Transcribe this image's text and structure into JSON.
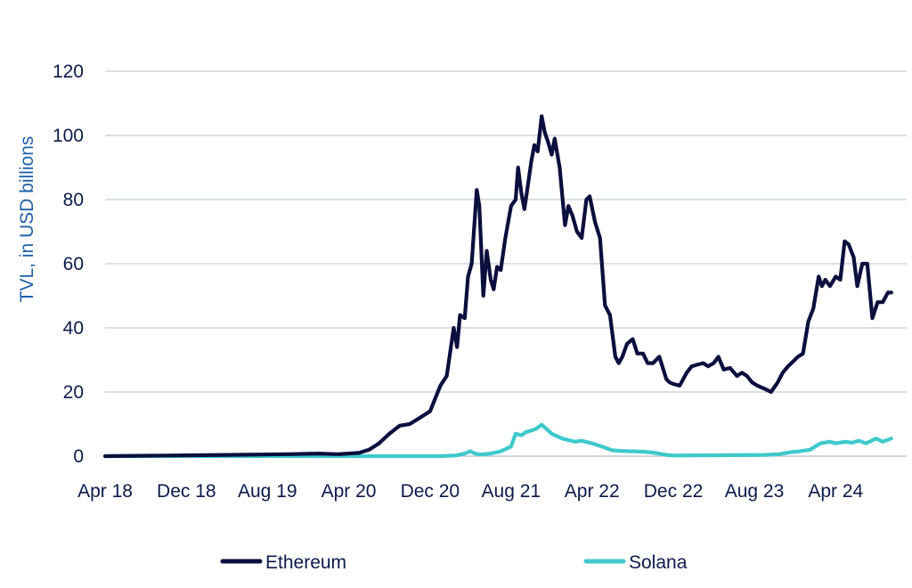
{
  "chart_data": {
    "type": "line",
    "title": "",
    "xlabel": "",
    "ylabel": "TVL, in USD billions",
    "ylim": [
      0,
      120
    ],
    "yticks": [
      0,
      20,
      40,
      60,
      80,
      100,
      120
    ],
    "xlim": [
      "2018-04-01",
      "2024-10-31"
    ],
    "xticks": [
      {
        "date": "2018-04-01",
        "label": "Apr 18"
      },
      {
        "date": "2018-12-01",
        "label": "Dec 18"
      },
      {
        "date": "2019-08-01",
        "label": "Aug 19"
      },
      {
        "date": "2020-04-01",
        "label": "Apr 20"
      },
      {
        "date": "2020-12-01",
        "label": "Dec 20"
      },
      {
        "date": "2021-08-01",
        "label": "Aug 21"
      },
      {
        "date": "2022-04-01",
        "label": "Apr 22"
      },
      {
        "date": "2022-12-01",
        "label": "Dec 22"
      },
      {
        "date": "2023-08-01",
        "label": "Aug 23"
      },
      {
        "date": "2024-04-01",
        "label": "Apr 24"
      }
    ],
    "grid": true,
    "legend_position": "bottom",
    "series": [
      {
        "name": "Ethereum",
        "color": "#0b0f3d",
        "points": [
          [
            "2018-04-01",
            0.0
          ],
          [
            "2018-10-01",
            0.2
          ],
          [
            "2019-04-01",
            0.4
          ],
          [
            "2019-10-01",
            0.6
          ],
          [
            "2020-01-01",
            0.8
          ],
          [
            "2020-03-01",
            0.6
          ],
          [
            "2020-05-01",
            1.0
          ],
          [
            "2020-06-01",
            2.0
          ],
          [
            "2020-07-01",
            4.0
          ],
          [
            "2020-08-01",
            7.0
          ],
          [
            "2020-09-01",
            9.5
          ],
          [
            "2020-10-01",
            10.0
          ],
          [
            "2020-11-01",
            12.0
          ],
          [
            "2020-12-01",
            14.0
          ],
          [
            "2021-01-01",
            22.0
          ],
          [
            "2021-01-20",
            25.0
          ],
          [
            "2021-02-10",
            40.0
          ],
          [
            "2021-02-20",
            34.0
          ],
          [
            "2021-03-01",
            44.0
          ],
          [
            "2021-03-15",
            43.0
          ],
          [
            "2021-03-25",
            56.0
          ],
          [
            "2021-04-05",
            60.0
          ],
          [
            "2021-04-20",
            83.0
          ],
          [
            "2021-04-28",
            78.0
          ],
          [
            "2021-05-10",
            50.0
          ],
          [
            "2021-05-20",
            64.0
          ],
          [
            "2021-06-01",
            55.0
          ],
          [
            "2021-06-10",
            52.0
          ],
          [
            "2021-06-20",
            59.0
          ],
          [
            "2021-07-01",
            58.0
          ],
          [
            "2021-07-15",
            68.0
          ],
          [
            "2021-08-01",
            78.0
          ],
          [
            "2021-08-15",
            80.0
          ],
          [
            "2021-08-22",
            90.0
          ],
          [
            "2021-09-01",
            82.0
          ],
          [
            "2021-09-10",
            77.0
          ],
          [
            "2021-09-20",
            84.0
          ],
          [
            "2021-10-01",
            92.0
          ],
          [
            "2021-10-10",
            97.0
          ],
          [
            "2021-10-20",
            95.0
          ],
          [
            "2021-11-01",
            106.0
          ],
          [
            "2021-11-10",
            101.0
          ],
          [
            "2021-11-20",
            98.0
          ],
          [
            "2021-12-01",
            94.0
          ],
          [
            "2021-12-10",
            99.0
          ],
          [
            "2021-12-25",
            90.0
          ],
          [
            "2022-01-10",
            72.0
          ],
          [
            "2022-01-20",
            78.0
          ],
          [
            "2022-02-01",
            75.0
          ],
          [
            "2022-02-15",
            70.0
          ],
          [
            "2022-03-01",
            68.0
          ],
          [
            "2022-03-15",
            80.0
          ],
          [
            "2022-03-25",
            81.0
          ],
          [
            "2022-04-10",
            73.0
          ],
          [
            "2022-04-25",
            68.0
          ],
          [
            "2022-05-10",
            47.0
          ],
          [
            "2022-05-25",
            44.0
          ],
          [
            "2022-06-10",
            31.0
          ],
          [
            "2022-06-20",
            29.0
          ],
          [
            "2022-07-01",
            31.0
          ],
          [
            "2022-07-15",
            35.0
          ],
          [
            "2022-08-01",
            36.5
          ],
          [
            "2022-08-15",
            32.0
          ],
          [
            "2022-09-01",
            32.0
          ],
          [
            "2022-09-15",
            29.0
          ],
          [
            "2022-10-01",
            29.0
          ],
          [
            "2022-10-20",
            31.0
          ],
          [
            "2022-11-10",
            24.0
          ],
          [
            "2022-11-20",
            23.0
          ],
          [
            "2022-12-01",
            22.5
          ],
          [
            "2022-12-20",
            22.0
          ],
          [
            "2023-01-10",
            26.0
          ],
          [
            "2023-01-25",
            28.0
          ],
          [
            "2023-02-10",
            28.5
          ],
          [
            "2023-03-01",
            29.0
          ],
          [
            "2023-03-15",
            28.0
          ],
          [
            "2023-04-01",
            29.0
          ],
          [
            "2023-04-15",
            31.0
          ],
          [
            "2023-05-01",
            27.0
          ],
          [
            "2023-05-20",
            27.5
          ],
          [
            "2023-06-10",
            25.0
          ],
          [
            "2023-06-25",
            26.0
          ],
          [
            "2023-07-10",
            25.0
          ],
          [
            "2023-07-25",
            23.0
          ],
          [
            "2023-08-10",
            22.0
          ],
          [
            "2023-09-01",
            21.0
          ],
          [
            "2023-09-20",
            20.0
          ],
          [
            "2023-10-10",
            23.0
          ],
          [
            "2023-10-25",
            26.0
          ],
          [
            "2023-11-10",
            28.0
          ],
          [
            "2023-11-25",
            29.5
          ],
          [
            "2023-12-10",
            31.0
          ],
          [
            "2023-12-25",
            32.0
          ],
          [
            "2024-01-10",
            42.0
          ],
          [
            "2024-01-25",
            46.0
          ],
          [
            "2024-02-10",
            56.0
          ],
          [
            "2024-02-20",
            53.0
          ],
          [
            "2024-03-01",
            55.0
          ],
          [
            "2024-03-15",
            53.0
          ],
          [
            "2024-04-01",
            56.0
          ],
          [
            "2024-04-15",
            55.0
          ],
          [
            "2024-04-28",
            67.0
          ],
          [
            "2024-05-10",
            66.0
          ],
          [
            "2024-05-25",
            62.0
          ],
          [
            "2024-06-05",
            53.0
          ],
          [
            "2024-06-20",
            60.0
          ],
          [
            "2024-07-05",
            60.0
          ],
          [
            "2024-07-20",
            43.0
          ],
          [
            "2024-08-05",
            48.0
          ],
          [
            "2024-08-20",
            48.0
          ],
          [
            "2024-09-05",
            51.0
          ],
          [
            "2024-09-15",
            51.0
          ]
        ]
      },
      {
        "name": "Solana",
        "color": "#3ec9cc",
        "points": [
          [
            "2018-04-01",
            0.0
          ],
          [
            "2021-01-01",
            0.0
          ],
          [
            "2021-02-15",
            0.2
          ],
          [
            "2021-03-15",
            0.8
          ],
          [
            "2021-04-01",
            1.5
          ],
          [
            "2021-04-15",
            0.8
          ],
          [
            "2021-05-01",
            0.5
          ],
          [
            "2021-06-01",
            0.8
          ],
          [
            "2021-07-01",
            1.5
          ],
          [
            "2021-08-01",
            3.0
          ],
          [
            "2021-08-15",
            7.0
          ],
          [
            "2021-09-01",
            6.5
          ],
          [
            "2021-09-15",
            7.5
          ],
          [
            "2021-10-01",
            8.0
          ],
          [
            "2021-10-15",
            8.5
          ],
          [
            "2021-11-01",
            9.8
          ],
          [
            "2021-11-15",
            8.5
          ],
          [
            "2021-12-01",
            7.0
          ],
          [
            "2022-01-01",
            5.5
          ],
          [
            "2022-01-20",
            5.0
          ],
          [
            "2022-02-10",
            4.5
          ],
          [
            "2022-03-01",
            4.8
          ],
          [
            "2022-04-01",
            4.0
          ],
          [
            "2022-05-01",
            3.0
          ],
          [
            "2022-06-01",
            1.8
          ],
          [
            "2022-07-01",
            1.6
          ],
          [
            "2022-09-01",
            1.4
          ],
          [
            "2022-10-01",
            1.1
          ],
          [
            "2022-11-10",
            0.4
          ],
          [
            "2022-12-01",
            0.2
          ],
          [
            "2023-06-01",
            0.3
          ],
          [
            "2023-09-01",
            0.4
          ],
          [
            "2023-10-15",
            0.6
          ],
          [
            "2023-11-15",
            1.2
          ],
          [
            "2023-12-15",
            1.5
          ],
          [
            "2024-01-15",
            2.0
          ],
          [
            "2024-02-15",
            4.0
          ],
          [
            "2024-03-15",
            4.5
          ],
          [
            "2024-04-01",
            4.0
          ],
          [
            "2024-05-01",
            4.5
          ],
          [
            "2024-05-20",
            4.2
          ],
          [
            "2024-06-10",
            4.8
          ],
          [
            "2024-07-01",
            4.0
          ],
          [
            "2024-08-01",
            5.5
          ],
          [
            "2024-08-20",
            4.5
          ],
          [
            "2024-09-15",
            5.5
          ]
        ]
      }
    ]
  }
}
